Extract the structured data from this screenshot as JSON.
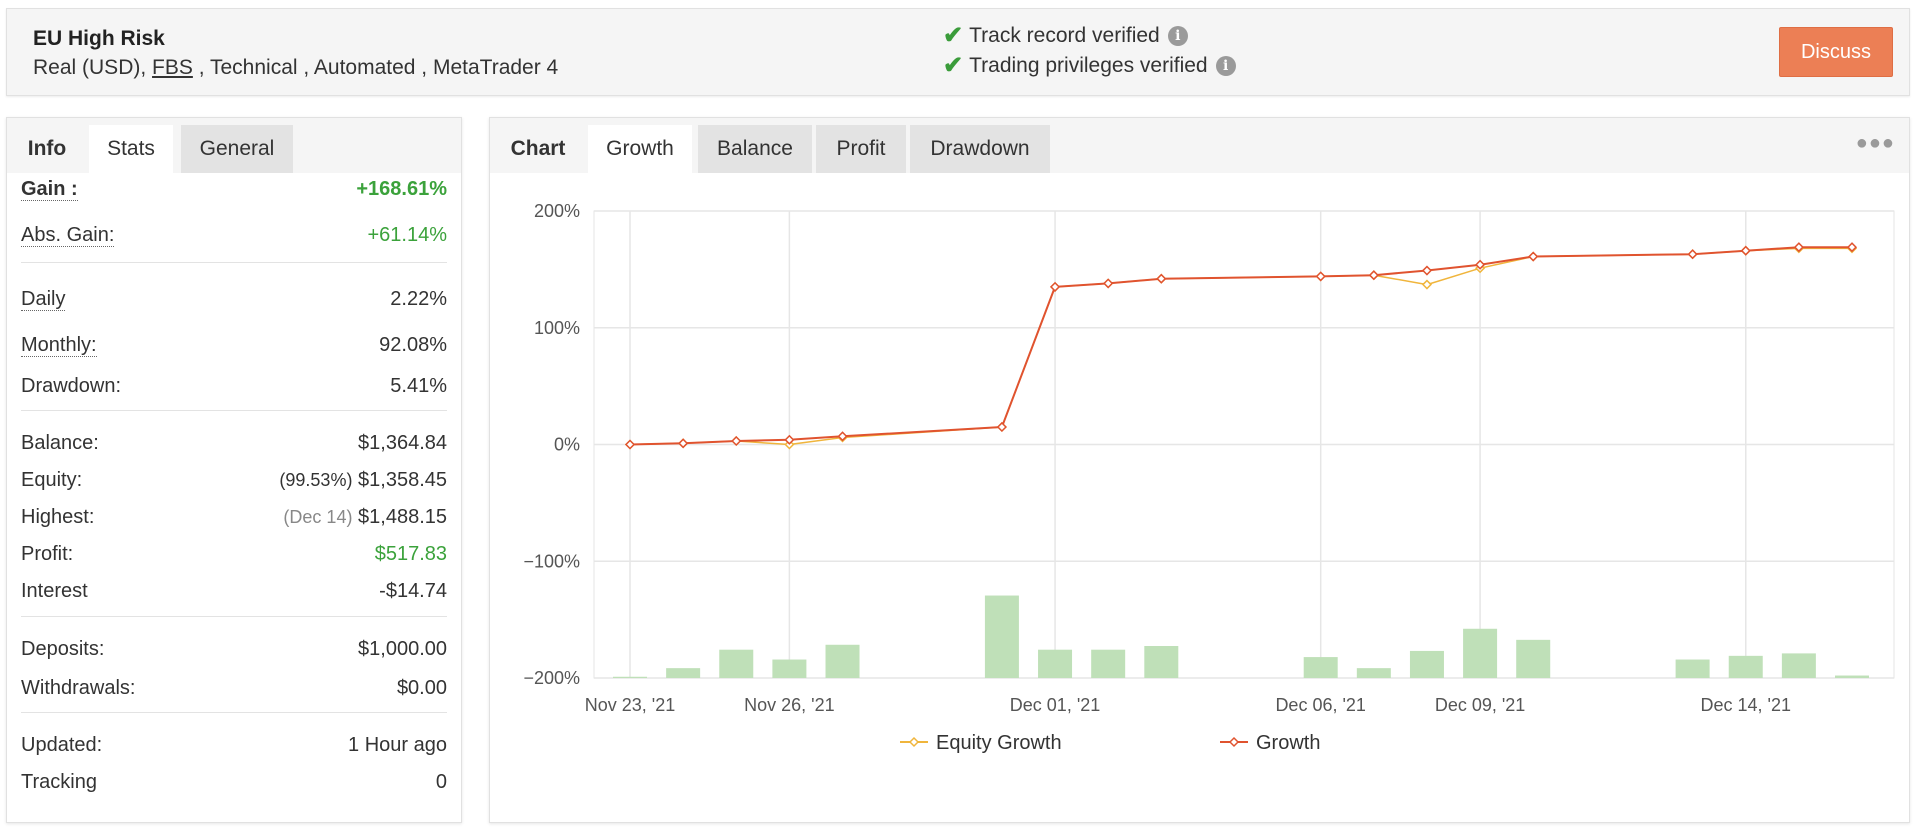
{
  "header": {
    "system_name": "EU High Risk",
    "account_type": "Real (USD), ",
    "broker": "FBS",
    "tags_rest": " , Technical , Automated , MetaTrader 4",
    "verifications": [
      {
        "label": "Track record verified"
      },
      {
        "label": "Trading privileges verified"
      }
    ],
    "discuss_label": "Discuss"
  },
  "left_tabs": [
    {
      "label": "Info"
    },
    {
      "label": "Stats"
    },
    {
      "label": "General"
    }
  ],
  "stats": {
    "gain": {
      "label": "Gain :",
      "value": "+168.61%"
    },
    "abs_gain": {
      "label": "Abs. Gain:",
      "value": "+61.14%"
    },
    "daily": {
      "label": "Daily",
      "value": "2.22%"
    },
    "monthly": {
      "label": "Monthly:",
      "value": "92.08%"
    },
    "drawdown": {
      "label": "Drawdown:",
      "value": "5.41%"
    },
    "balance": {
      "label": "Balance:",
      "value": "$1,364.84"
    },
    "equity": {
      "label": "Equity:",
      "prefix": "(99.53%)",
      "value": "$1,358.45"
    },
    "highest": {
      "label": "Highest:",
      "prefix": "(Dec 14)",
      "value": "$1,488.15"
    },
    "profit": {
      "label": "Profit:",
      "value": "$517.83"
    },
    "interest": {
      "label": "Interest",
      "value": "-$14.74"
    },
    "deposits": {
      "label": "Deposits:",
      "value": "$1,000.00"
    },
    "withdrawals": {
      "label": "Withdrawals:",
      "value": "$0.00"
    },
    "updated": {
      "label": "Updated:",
      "value": "1 Hour ago"
    },
    "tracking": {
      "label": "Tracking",
      "value": "0"
    }
  },
  "chart_tabs": [
    {
      "label": "Chart"
    },
    {
      "label": "Growth"
    },
    {
      "label": "Balance"
    },
    {
      "label": "Profit"
    },
    {
      "label": "Drawdown"
    }
  ],
  "colors": {
    "growth": "#e0532f",
    "equity_growth": "#f0b53c",
    "bars": "#bfe0b8",
    "accent": "#ec7f55",
    "positive": "#3ba23b"
  },
  "chart_data": {
    "type": "line",
    "ylim": [
      -200,
      200
    ],
    "y_ticks": [
      "200%",
      "100%",
      "0%",
      "−100%",
      "−200%"
    ],
    "y_tick_values": [
      200,
      100,
      0,
      -100,
      -200
    ],
    "x_tick_labels": [
      "Nov 23, '21",
      "Nov 26, '21",
      "Dec 01, '21",
      "Dec 06, '21",
      "Dec 09, '21",
      "Dec 14, '21"
    ],
    "x_tick_dates": [
      "2021-11-23",
      "2021-11-26",
      "2021-12-01",
      "2021-12-06",
      "2021-12-09",
      "2021-12-14"
    ],
    "dates": [
      "2021-11-23",
      "2021-11-24",
      "2021-11-25",
      "2021-11-26",
      "2021-11-27",
      "2021-11-30",
      "2021-12-01",
      "2021-12-02",
      "2021-12-03",
      "2021-12-06",
      "2021-12-07",
      "2021-12-08",
      "2021-12-09",
      "2021-12-10",
      "2021-12-13",
      "2021-12-14",
      "2021-12-15",
      "2021-12-16"
    ],
    "series": [
      {
        "name": "Equity Growth",
        "values": [
          0,
          1,
          3,
          0,
          6,
          15,
          135,
          138,
          142,
          144,
          145,
          137,
          151,
          161,
          163,
          166,
          168,
          168
        ]
      },
      {
        "name": "Growth",
        "values": [
          0,
          1,
          3,
          4,
          7,
          15,
          135,
          138,
          142,
          144,
          145,
          149,
          154,
          161,
          163,
          166,
          169,
          169
        ]
      }
    ],
    "bar_values": [
      1,
      8,
      23,
      15,
      27,
      67,
      23,
      23,
      26,
      17,
      8,
      22,
      40,
      31,
      15,
      18,
      20,
      2
    ],
    "bar_ylim": [
      0,
      130
    ],
    "legend_position": "bottom"
  }
}
